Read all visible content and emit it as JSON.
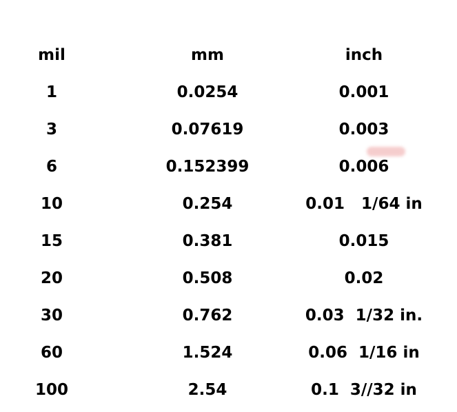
{
  "headers": [
    "mil",
    "mm",
    "inch"
  ],
  "rows": [
    [
      "1",
      "0.0254",
      "0.001"
    ],
    [
      "3",
      "0.07619",
      "0.003"
    ],
    [
      "6",
      "0.152399",
      "0.006"
    ],
    [
      "10",
      "0.254",
      "0.01   1/64 in"
    ],
    [
      "15",
      "0.381",
      "0.015"
    ],
    [
      "20",
      "0.508",
      "0.02"
    ],
    [
      "30",
      "0.762",
      "0.03  1/32 in."
    ],
    [
      "60",
      "1.524",
      "0.06  1/16 in"
    ],
    [
      "100",
      "2.54",
      "0.1  3//32 in"
    ]
  ],
  "smudge_color": "#f2b8b8"
}
